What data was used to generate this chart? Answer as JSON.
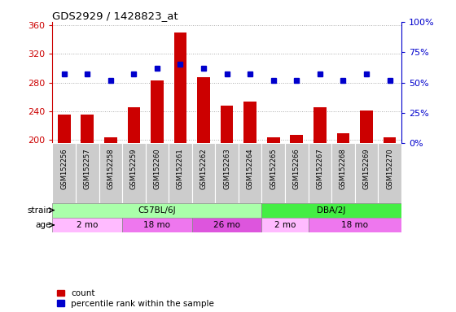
{
  "title": "GDS2929 / 1428823_at",
  "samples": [
    "GSM152256",
    "GSM152257",
    "GSM152258",
    "GSM152259",
    "GSM152260",
    "GSM152261",
    "GSM152262",
    "GSM152263",
    "GSM152264",
    "GSM152265",
    "GSM152266",
    "GSM152267",
    "GSM152268",
    "GSM152269",
    "GSM152270"
  ],
  "counts": [
    235,
    235,
    204,
    245,
    283,
    350,
    287,
    248,
    253,
    204,
    207,
    246,
    209,
    241,
    204
  ],
  "percentile_ranks": [
    57,
    57,
    52,
    57,
    62,
    65,
    62,
    57,
    57,
    52,
    52,
    57,
    52,
    57,
    52
  ],
  "ylim_left": [
    195,
    365
  ],
  "ylim_right": [
    0,
    100
  ],
  "yticks_left": [
    200,
    240,
    280,
    320,
    360
  ],
  "yticks_right": [
    0,
    25,
    50,
    75,
    100
  ],
  "bar_color": "#cc0000",
  "dot_color": "#0000cc",
  "strain_groups": [
    {
      "text": "C57BL/6J",
      "start": 0,
      "end": 8,
      "color": "#aaffaa"
    },
    {
      "text": "DBA/2J",
      "start": 9,
      "end": 14,
      "color": "#44ee44"
    }
  ],
  "age_groups": [
    {
      "text": "2 mo",
      "start": 0,
      "end": 2,
      "color": "#ffbbff"
    },
    {
      "text": "18 mo",
      "start": 3,
      "end": 5,
      "color": "#ee77ee"
    },
    {
      "text": "26 mo",
      "start": 6,
      "end": 8,
      "color": "#dd55dd"
    },
    {
      "text": "2 mo",
      "start": 9,
      "end": 10,
      "color": "#ffbbff"
    },
    {
      "text": "18 mo",
      "start": 11,
      "end": 14,
      "color": "#ee77ee"
    }
  ],
  "grid_color": "#aaaaaa",
  "bg_color": "#ffffff",
  "sample_bg_color": "#cccccc",
  "count_label": "count",
  "percentile_label": "percentile rank within the sample",
  "left_axis_color": "#cc0000",
  "right_axis_color": "#0000cc",
  "border_color": "#888888"
}
